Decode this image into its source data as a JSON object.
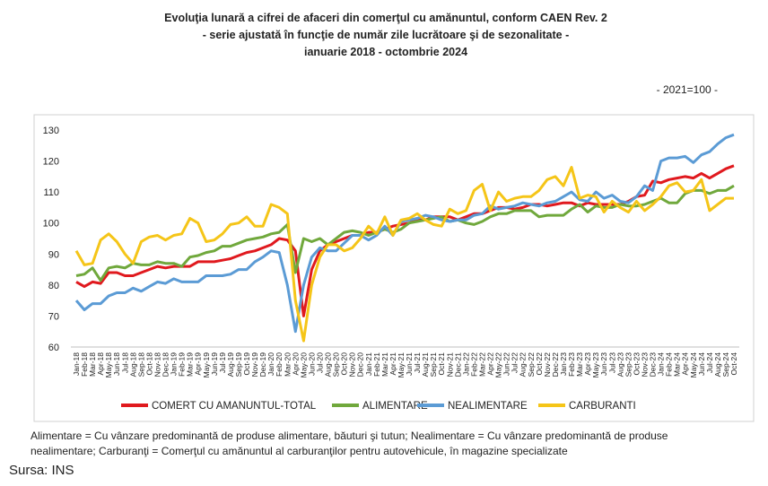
{
  "chart_data": {
    "type": "line",
    "title": [
      "Evoluţia lunară a cifrei de afaceri din comerţul cu amănuntul, conform CAEN Rev. 2",
      "- serie ajustată în funcţie de număr zile lucrătoare şi de sezonalitate -",
      "ianuarie 2018 - octombrie 2024"
    ],
    "units_note": "- 2021=100 -",
    "categories": [
      "Jan-18",
      "Feb-18",
      "Mar-18",
      "Apr-18",
      "May-18",
      "Jun-18",
      "Jul-18",
      "Aug-18",
      "Sep-18",
      "Oct-18",
      "Nov-18",
      "Dec-18",
      "Jan-19",
      "Feb-19",
      "Mar-19",
      "Apr-19",
      "May-19",
      "Jun-19",
      "Jul-19",
      "Aug-19",
      "Sep-19",
      "Oct-19",
      "Nov-19",
      "Dec-19",
      "Jan-20",
      "Feb-20",
      "Mar-20",
      "Apr-20",
      "May-20",
      "Jun-20",
      "Jul-20",
      "Aug-20",
      "Sep-20",
      "Oct-20",
      "Nov-20",
      "Dec-20",
      "Jan-21",
      "Feb-21",
      "Mar-21",
      "Apr-21",
      "May-21",
      "Jun-21",
      "Jul-21",
      "Aug-21",
      "Sep-21",
      "Oct-21",
      "Nov-21",
      "Dec-21",
      "Jan-22",
      "Feb-22",
      "Mar-22",
      "Apr-22",
      "May-22",
      "Jun-22",
      "Jul-22",
      "Aug-22",
      "Sep-22",
      "Oct-22",
      "Nov-22",
      "Dec-22",
      "Jan-23",
      "Feb-23",
      "Mar-23",
      "Apr-23",
      "May-23",
      "Jun-23",
      "Jul-23",
      "Aug-23",
      "Sep-23",
      "Oct-23",
      "Nov-23",
      "Dec-23",
      "Jan-24",
      "Feb-24",
      "Mar-24",
      "Apr-24",
      "May-24",
      "Jun-24",
      "Jul-24",
      "Aug-24",
      "Sep-24",
      "Oct-24"
    ],
    "series": [
      {
        "name": "COMERT CU AMANUNTUL-TOTAL",
        "color": "#e0191e",
        "values": [
          81,
          79.5,
          81,
          80.5,
          84,
          84,
          83,
          83,
          84,
          85,
          86,
          85.5,
          86,
          86,
          86,
          87.5,
          87.5,
          87.5,
          88,
          88.5,
          89.5,
          90.5,
          91,
          92,
          93,
          95,
          94.5,
          91,
          70,
          85,
          91,
          93,
          94,
          95,
          96,
          96,
          97,
          97,
          98,
          99,
          99.5,
          100,
          101,
          101,
          102,
          102,
          102,
          101,
          102,
          103,
          103,
          104,
          105,
          105,
          104.5,
          105,
          106,
          106,
          105.5,
          106,
          106.5,
          106.5,
          105.5,
          106.5,
          106,
          106,
          106,
          106,
          107,
          108.5,
          109,
          113.5,
          113,
          114,
          114.5,
          115,
          114.5,
          116,
          114.5,
          116,
          117.5,
          118.5
        ]
      },
      {
        "name": "ALIMENTARE",
        "color": "#70a83c",
        "values": [
          83,
          83.5,
          85.5,
          81.5,
          85.5,
          86,
          85.5,
          87,
          86.5,
          86.5,
          87.5,
          87,
          87,
          86,
          89,
          89.5,
          90.5,
          91,
          92.5,
          92.5,
          93.5,
          94.5,
          95,
          95.5,
          96.5,
          97,
          99.5,
          84,
          95,
          94,
          95,
          93,
          95,
          97,
          97.5,
          97,
          96,
          97,
          98,
          97,
          98,
          100,
          100.5,
          101,
          101.5,
          102,
          100.5,
          101,
          100,
          99.5,
          100.5,
          102,
          103,
          103,
          104,
          104,
          104,
          102,
          102.5,
          102.5,
          102.5,
          104.5,
          106,
          103.5,
          105.5,
          105,
          105,
          106,
          105.5,
          105.5,
          106,
          107,
          108,
          106.5,
          106.5,
          109.5,
          110.5,
          110.5,
          109.5,
          110.5,
          110.5,
          112
        ]
      },
      {
        "name": "NEALIMENTARE",
        "color": "#5b9bd5",
        "values": [
          75,
          72,
          74,
          74,
          76.5,
          77.5,
          77.5,
          79,
          78,
          79.5,
          81,
          80.5,
          82,
          81,
          81,
          81,
          83,
          83,
          83,
          83.5,
          85,
          85,
          87.5,
          89,
          91,
          90.5,
          80,
          65,
          80,
          89,
          92,
          91,
          91,
          93.5,
          96,
          96,
          94.5,
          96,
          99,
          96,
          100.5,
          101,
          101.5,
          102.5,
          102,
          101,
          100.5,
          101,
          101,
          102.5,
          103,
          105.5,
          104.5,
          105,
          105.5,
          106.5,
          106,
          105.5,
          106.5,
          107,
          108.5,
          110,
          107.5,
          107,
          110,
          108,
          109,
          107,
          106.5,
          108.5,
          112,
          110.5,
          120,
          121,
          121,
          121.5,
          119.5,
          122,
          123,
          125.5,
          127.5,
          128.5
        ]
      },
      {
        "name": "CARBURANTI",
        "color": "#f5c518",
        "values": [
          91,
          86.5,
          87,
          94.5,
          96.5,
          94,
          90,
          87,
          94,
          95.5,
          96,
          94.5,
          96,
          96.5,
          101.5,
          100,
          94,
          94.5,
          96.5,
          99.5,
          100,
          102,
          99,
          99,
          106,
          105,
          103,
          75,
          62,
          80,
          89,
          93,
          93,
          91,
          92,
          95,
          99,
          96.5,
          102,
          96,
          101,
          101.5,
          103,
          101,
          99.5,
          99,
          104.5,
          103,
          104,
          110.5,
          112.5,
          104,
          110,
          107,
          108,
          108.5,
          108.5,
          110.5,
          114,
          115,
          112,
          118,
          108,
          109,
          108.5,
          103.5,
          107,
          105,
          103.5,
          107,
          104,
          106,
          108.5,
          112,
          113,
          110,
          110.5,
          114,
          104,
          106,
          108,
          108
        ]
      }
    ],
    "ylim": [
      60,
      130
    ],
    "yticks": [
      60,
      70,
      80,
      90,
      100,
      110,
      120,
      130
    ],
    "grid": false,
    "legend": "bottom",
    "notes": [
      "Alimentare = Cu vânzare predominantă de produse alimentare, băuturi şi tutun; Nealimentare = Cu vânzare predominantă de produse",
      "nealimentare; Carburanţi = Comerţul cu amănuntul al carburanţilor pentru autovehicule, în magazine specializate"
    ],
    "source": "Sursa: INS"
  }
}
